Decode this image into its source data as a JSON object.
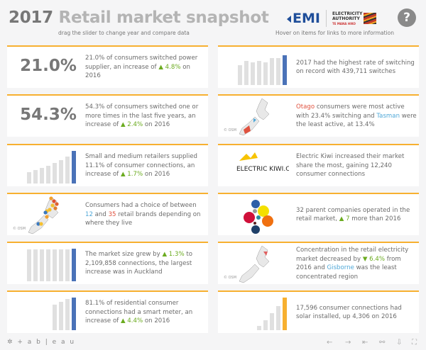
{
  "header": {
    "year": "2017",
    "title": " Retail market snapshot",
    "subtitle_left": "drag the slider to change year and compare data",
    "subtitle_right": "Hover on items for links to more information",
    "logo_emi": "EMI",
    "logo_ea_line1": "ELECTRICITY",
    "logo_ea_line2": "AUTHORITY",
    "logo_ea_line3": "TE MANA HIKO",
    "help": "?"
  },
  "colors": {
    "accent": "#f7b030",
    "highlight_bar": "#4a72b8",
    "solar_bar": "#f7b030",
    "increase": "#6bab1f",
    "red_text": "#e0523f",
    "blue_text": "#4fa8d8"
  },
  "cards": [
    {
      "big": "21.0%",
      "text": [
        {
          "t": "21.0% of consumers switched power supplier, an increase of "
        },
        {
          "t": "▲ 4.8%",
          "c": "up"
        },
        {
          "t": " on 2016"
        }
      ]
    },
    {
      "bars": [
        60,
        75,
        70,
        75,
        70,
        82,
        82,
        92
      ],
      "text": [
        {
          "t": "2017 had the highest rate of switching on record with 439,711 switches"
        }
      ]
    },
    {
      "big": "54.3%",
      "text": [
        {
          "t": "54.3% of consumers switched one or more times in the last five years, an increase of "
        },
        {
          "t": "▲ 2.4%",
          "c": "up"
        },
        {
          "t": " on 2016"
        }
      ]
    },
    {
      "map": "switching",
      "osm": "© OSM",
      "text": [
        {
          "t": "Otago",
          "c": "red"
        },
        {
          "t": " consumers were most active with 23.4% switching and "
        },
        {
          "t": "Tasman",
          "c": "blue"
        },
        {
          "t": " were the least active, at 13.4%"
        }
      ]
    },
    {
      "bars": [
        35,
        42,
        48,
        55,
        62,
        72,
        82,
        100
      ],
      "text": [
        {
          "t": "Small and medium retailers supplied 11.1% of consumer connections, an increase of "
        },
        {
          "t": "▲ 1.7%",
          "c": "up"
        },
        {
          "t": " on 2016"
        }
      ]
    },
    {
      "logo": "ELECTRIC KIWI.CO.NZ",
      "text": [
        {
          "t": "Electric Kiwi increased their market share the most, gaining 12,240 consumer connections"
        }
      ]
    },
    {
      "map": "brands",
      "osm": "© OSM",
      "text": [
        {
          "t": "Consumers had a choice of between "
        },
        {
          "t": "12",
          "c": "blue"
        },
        {
          "t": " and "
        },
        {
          "t": "35",
          "c": "red"
        },
        {
          "t": " retail brands depending on where they live"
        }
      ]
    },
    {
      "bubbles": true,
      "text": [
        {
          "t": "32 parent companies operated in the retail market, "
        },
        {
          "t": "▲ 7",
          "c": "up"
        },
        {
          "t": " more than 2016"
        }
      ]
    },
    {
      "bars": [
        98,
        98,
        98,
        98,
        98,
        98,
        98,
        100
      ],
      "text": [
        {
          "t": "The market size grew by "
        },
        {
          "t": "▲ 1.3%",
          "c": "up"
        },
        {
          "t": " to 2,109,858 connections, the largest increase was in Auckland"
        }
      ]
    },
    {
      "map": "concentration",
      "osm": "© OSM",
      "text": [
        {
          "t": "Concentration in the retail electricity market decreased by "
        },
        {
          "t": "▼ 6.4%",
          "c": "up"
        },
        {
          "t": " from 2016 and "
        },
        {
          "t": "Gisborne",
          "c": "blue"
        },
        {
          "t": " was the least concentrated region"
        }
      ]
    },
    {
      "bars": [
        78,
        88,
        96,
        100
      ],
      "text": [
        {
          "t": "81.1% of residential consumer connections had a smart meter, an increase of "
        },
        {
          "t": "▲ 4.4%",
          "c": "up"
        },
        {
          "t": " on 2016"
        }
      ]
    },
    {
      "bars": [
        12,
        30,
        52,
        74,
        100
      ],
      "solar": true,
      "text": [
        {
          "t": "17,596 consumer connections had solar installed, up 4,306 on 2016"
        }
      ]
    }
  ],
  "footer": {
    "brand": "+ a b | e a u"
  }
}
